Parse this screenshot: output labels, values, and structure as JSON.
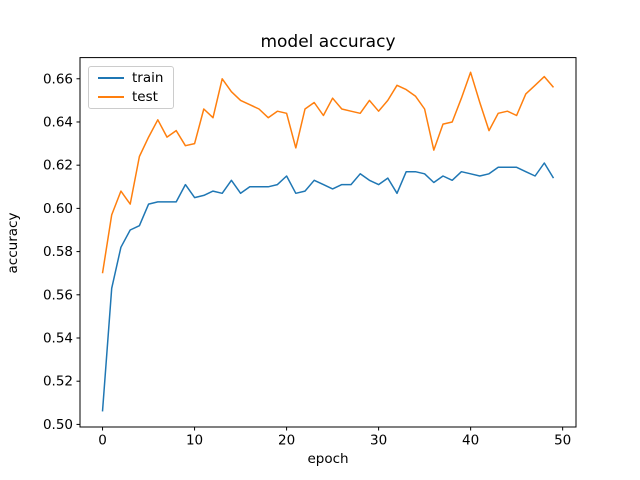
{
  "figure": {
    "background": "#ffffff"
  },
  "chart_data": {
    "type": "line",
    "title": "model accuracy",
    "xlabel": "epoch",
    "ylabel": "accuracy",
    "grid": false,
    "legend_position": "upper left",
    "xlim": [
      -2.45,
      51.45
    ],
    "ylim": [
      0.4988,
      0.6698
    ],
    "x_ticks": [
      0,
      10,
      20,
      30,
      40,
      50
    ],
    "y_ticks": [
      0.5,
      0.52,
      0.54,
      0.56,
      0.58,
      0.6,
      0.62,
      0.64,
      0.66
    ],
    "y_tick_labels": [
      "0.50",
      "0.52",
      "0.54",
      "0.56",
      "0.58",
      "0.60",
      "0.62",
      "0.64",
      "0.66"
    ],
    "x": [
      0,
      1,
      2,
      3,
      4,
      5,
      6,
      7,
      8,
      9,
      10,
      11,
      12,
      13,
      14,
      15,
      16,
      17,
      18,
      19,
      20,
      21,
      22,
      23,
      24,
      25,
      26,
      27,
      28,
      29,
      30,
      31,
      32,
      33,
      34,
      35,
      36,
      37,
      38,
      39,
      40,
      41,
      42,
      43,
      44,
      45,
      46,
      47,
      48,
      49
    ],
    "series": [
      {
        "name": "train",
        "color": "#1f77b4",
        "values": [
          0.506,
          0.563,
          0.582,
          0.59,
          0.592,
          0.602,
          0.603,
          0.603,
          0.603,
          0.611,
          0.605,
          0.606,
          0.608,
          0.607,
          0.613,
          0.607,
          0.61,
          0.61,
          0.61,
          0.611,
          0.615,
          0.607,
          0.608,
          0.613,
          0.611,
          0.609,
          0.611,
          0.611,
          0.616,
          0.613,
          0.611,
          0.614,
          0.607,
          0.617,
          0.617,
          0.616,
          0.612,
          0.615,
          0.613,
          0.617,
          0.616,
          0.615,
          0.616,
          0.619,
          0.619,
          0.619,
          0.617,
          0.615,
          0.621,
          0.614
        ]
      },
      {
        "name": "test",
        "color": "#ff7f0e",
        "values": [
          0.57,
          0.597,
          0.608,
          0.602,
          0.624,
          0.633,
          0.641,
          0.633,
          0.636,
          0.629,
          0.63,
          0.646,
          0.642,
          0.66,
          0.654,
          0.65,
          0.648,
          0.646,
          0.642,
          0.645,
          0.644,
          0.628,
          0.646,
          0.649,
          0.643,
          0.651,
          0.646,
          0.645,
          0.644,
          0.65,
          0.645,
          0.65,
          0.657,
          0.655,
          0.652,
          0.646,
          0.627,
          0.639,
          0.64,
          0.651,
          0.663,
          0.649,
          0.636,
          0.644,
          0.645,
          0.643,
          0.653,
          0.657,
          0.661,
          0.656
        ]
      }
    ]
  }
}
